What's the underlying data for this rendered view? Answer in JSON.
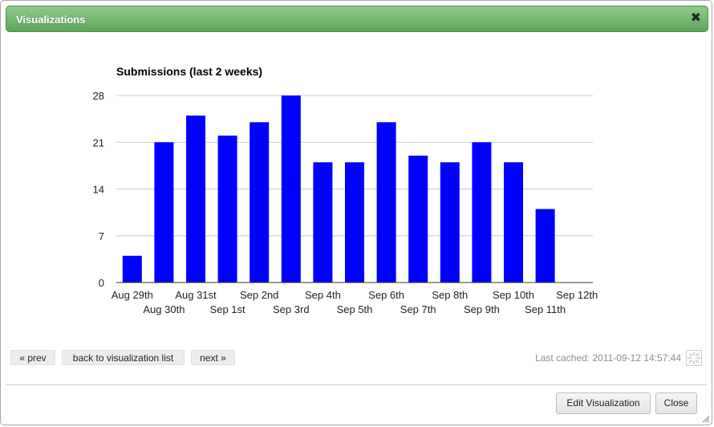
{
  "dialog": {
    "title": "Visualizations",
    "close_icon": "close-icon"
  },
  "chart_data": {
    "type": "bar",
    "title": "Submissions (last 2 weeks)",
    "categories": [
      "Aug 29th",
      "Aug 30th",
      "Aug 31st",
      "Sep 1st",
      "Sep 2nd",
      "Sep 3rd",
      "Sep 4th",
      "Sep 5th",
      "Sep 6th",
      "Sep 7th",
      "Sep 8th",
      "Sep 9th",
      "Sep 10th",
      "Sep 11th",
      "Sep 12th"
    ],
    "values": [
      4,
      21,
      25,
      22,
      24,
      28,
      18,
      18,
      24,
      19,
      18,
      21,
      18,
      11,
      0
    ],
    "yticks": [
      "0",
      "7",
      "14",
      "21",
      "28"
    ],
    "ylim": [
      0,
      28
    ],
    "grid": true,
    "bar_color": "#0000ff",
    "xlabel": "",
    "ylabel": ""
  },
  "nav": {
    "prev_label": "« prev",
    "back_label": "back to visualization list",
    "next_label": "next »"
  },
  "status": {
    "last_cached": "Last cached: 2011-09-12 14:57:44",
    "refresh_icon": "spinner-icon"
  },
  "footer": {
    "edit_label": "Edit Visualization",
    "close_label": "Close"
  },
  "colors": {
    "titlebar": "#6fb36b",
    "bar": "#0000ff"
  }
}
